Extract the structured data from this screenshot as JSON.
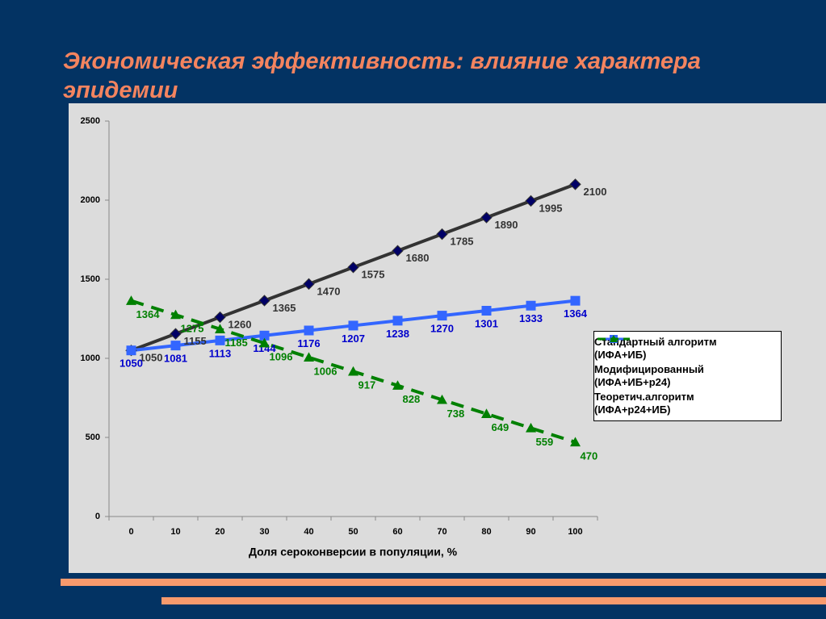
{
  "chart_data": {
    "type": "line",
    "title": "Экономическая эффективность: влияние характера эпидемии",
    "x_label": "Доля сероконверсии в популяции, %",
    "categories": [
      "0",
      "10",
      "20",
      "30",
      "40",
      "50",
      "60",
      "70",
      "80",
      "90",
      "100"
    ],
    "ylim": [
      0,
      2500
    ],
    "yticks": [
      0,
      500,
      1000,
      1500,
      2000,
      2500
    ],
    "grid": false,
    "legend": "right",
    "series": [
      {
        "name": "Стандартный алгоритм (ИФА+ИБ)",
        "color": "#333333",
        "marker_color": "#000066",
        "marker": "diamond",
        "dashed": false,
        "label_color": "#333333",
        "values": [
          1050,
          1155,
          1260,
          1365,
          1470,
          1575,
          1680,
          1785,
          1890,
          1995,
          2100
        ]
      },
      {
        "name": "Модифицированный (ИФА+ИБ+р24)",
        "color": "#3366ff",
        "marker_color": "#3366ff",
        "marker": "square",
        "dashed": false,
        "label_color": "#0000cc",
        "values": [
          1050,
          1081,
          1113,
          1144,
          1176,
          1207,
          1238,
          1270,
          1301,
          1333,
          1364
        ]
      },
      {
        "name": "Теоретич.алгоритм (ИФА+р24+ИБ)",
        "color": "#008000",
        "marker_color": "#008000",
        "marker": "triangle",
        "dashed": true,
        "label_color": "#008000",
        "values": [
          1364,
          1275,
          1185,
          1096,
          1006,
          917,
          828,
          738,
          649,
          559,
          470
        ]
      }
    ]
  }
}
